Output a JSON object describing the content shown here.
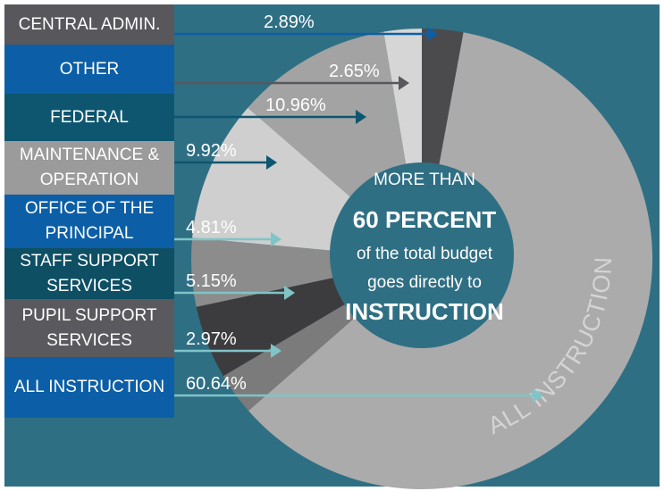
{
  "chart_data": {
    "type": "pie",
    "categories": [
      "CENTRAL ADMIN.",
      "OTHER",
      "FEDERAL",
      "MAINTENANCE & OPERATION",
      "OFFICE OF THE PRINCIPAL",
      "STAFF SUPPORT SERVICES",
      "PUPIL SUPPORT SERVICES",
      "ALL INSTRUCTION"
    ],
    "values": [
      2.89,
      2.65,
      10.96,
      9.92,
      4.81,
      5.15,
      2.97,
      60.64
    ],
    "value_labels": [
      "2.89%",
      "2.65%",
      "10.96%",
      "9.92%",
      "4.81%",
      "5.15%",
      "2.97%",
      "60.64%"
    ],
    "colors": [
      "#4b4b4e",
      "#d6d6d6",
      "#a3a3a3",
      "#cfcfcf",
      "#8c8c8c",
      "#3c3c3f",
      "#7b7b7b",
      "#ababab"
    ],
    "ring_label": "ALL INSTRUCTION",
    "center_text": [
      "MORE THAN",
      "60 PERCENT",
      "of the total budget",
      "goes directly to",
      "INSTRUCTION"
    ]
  }
}
